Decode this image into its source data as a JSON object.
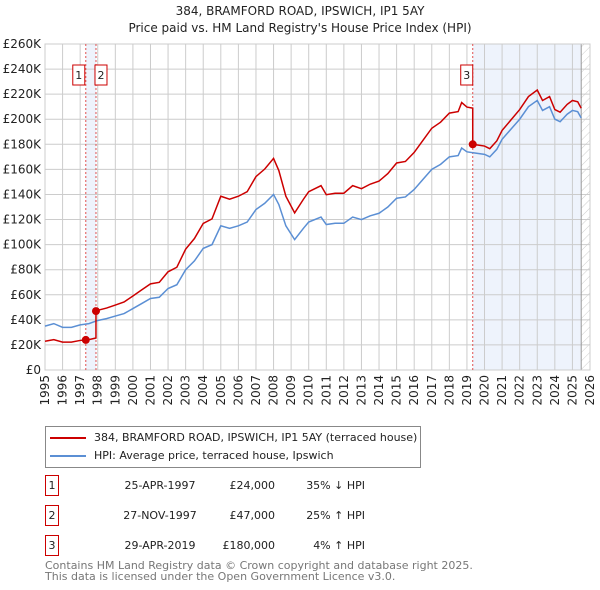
{
  "chart_data": {
    "type": "line",
    "title": "384, BRAMFORD ROAD, IPSWICH, IP1 5AY",
    "subtitle": "Price paid vs. HM Land Registry's House Price Index (HPI)",
    "xlim": [
      1995,
      2026
    ],
    "ylim": [
      0,
      260000
    ],
    "y_ticks": [
      "£0",
      "£20K",
      "£40K",
      "£60K",
      "£80K",
      "£100K",
      "£120K",
      "£140K",
      "£160K",
      "£180K",
      "£200K",
      "£220K",
      "£240K",
      "£260K"
    ],
    "x_ticks": [
      "1995",
      "1996",
      "1997",
      "1998",
      "1999",
      "2000",
      "2001",
      "2002",
      "2003",
      "2004",
      "2005",
      "2006",
      "2007",
      "2008",
      "2009",
      "2010",
      "2011",
      "2012",
      "2013",
      "2014",
      "2015",
      "2016",
      "2017",
      "2018",
      "2019",
      "2020",
      "2021",
      "2022",
      "2023",
      "2024",
      "2025",
      "2026"
    ],
    "grid": true,
    "hpi_series": {
      "name": "HPI: Average price, terraced house, Ipswich",
      "color": "#5b8fd4",
      "x": [
        1995,
        1995.5,
        1996,
        1996.5,
        1997,
        1997.5,
        1998,
        1998.5,
        1999,
        1999.5,
        2000,
        2000.5,
        2001,
        2001.5,
        2002,
        2002.5,
        2003,
        2003.5,
        2004,
        2004.5,
        2005,
        2005.5,
        2006,
        2006.5,
        2007,
        2007.5,
        2008,
        2008.3,
        2008.7,
        2009.2,
        2009.7,
        2010,
        2010.7,
        2011,
        2011.5,
        2012,
        2012.5,
        2013,
        2013.5,
        2014,
        2014.5,
        2015,
        2015.5,
        2016,
        2016.5,
        2017,
        2017.5,
        2018,
        2018.5,
        2018.7,
        2019,
        2019.5,
        2020,
        2020.3,
        2020.7,
        2021,
        2021.5,
        2022,
        2022.5,
        2023,
        2023.3,
        2023.7,
        2024,
        2024.3,
        2024.7,
        2025,
        2025.3,
        2025.5
      ],
      "y": [
        35000,
        37000,
        34000,
        34000,
        36000,
        37000,
        39500,
        41000,
        43000,
        45000,
        49000,
        53000,
        57000,
        58000,
        65000,
        68000,
        80000,
        87000,
        97000,
        100000,
        115000,
        113000,
        115000,
        118000,
        128000,
        133000,
        140000,
        132000,
        115000,
        104000,
        113000,
        118000,
        122000,
        116000,
        117000,
        117000,
        122000,
        120000,
        123000,
        125000,
        130000,
        137000,
        138000,
        144000,
        152000,
        160000,
        164000,
        170000,
        171000,
        177000,
        174000,
        173000,
        172000,
        170000,
        176000,
        184000,
        192000,
        200000,
        210000,
        215000,
        207000,
        210000,
        200000,
        198000,
        204000,
        207000,
        206000,
        201000
      ]
    },
    "property_series": {
      "name": "384, BRAMFORD ROAD, IPSWICH, IP1 5AY (terraced house)",
      "color": "#cc0000"
    },
    "sales": [
      {
        "id": "1",
        "x": 1997.32,
        "date": "25-APR-1997",
        "price": 24000,
        "price_label": "£24,000",
        "hpi": "35% ↓ HPI"
      },
      {
        "id": "2",
        "x": 1997.9,
        "date": "27-NOV-1997",
        "price": 47000,
        "price_label": "£47,000",
        "hpi": "25% ↑ HPI"
      },
      {
        "id": "3",
        "x": 2019.33,
        "date": "29-APR-2019",
        "price": 180000,
        "price_label": "£180,000",
        "hpi": "4% ↑ HPI"
      }
    ]
  },
  "footer": [
    "Contains HM Land Registry data © Crown copyright and database right 2025.",
    "This data is licensed under the Open Government Licence v3.0."
  ]
}
